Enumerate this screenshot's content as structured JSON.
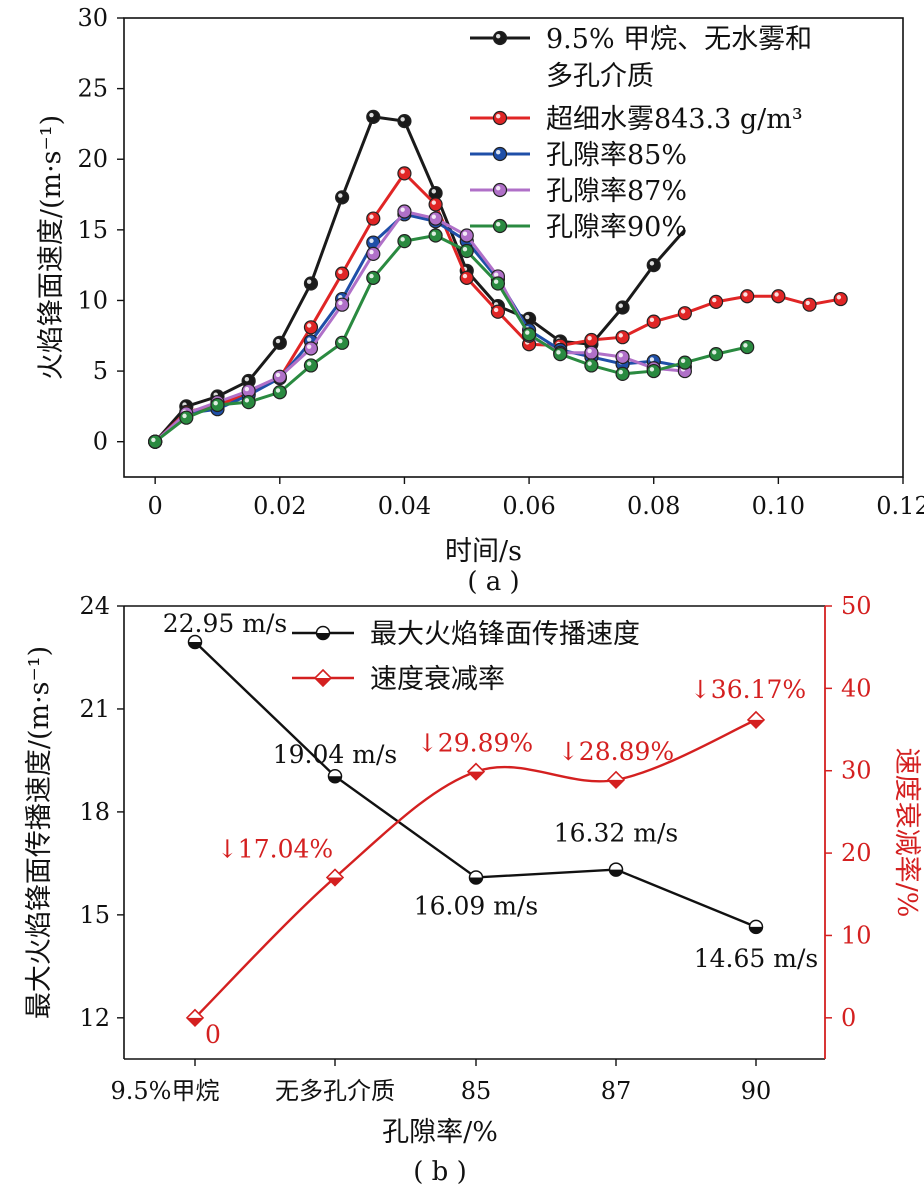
{
  "chart_data": [
    {
      "type": "line",
      "panel_label": "( a )",
      "xlabel": "时间/s",
      "ylabel": "火焰锋面速度/(m·s⁻¹)",
      "xlim": [
        -0.005,
        0.12
      ],
      "ylim": [
        -2.5,
        30
      ],
      "xticks": [
        "0",
        "0.02",
        "0.04",
        "0.06",
        "0.08",
        "0.10",
        "0.12"
      ],
      "yticks": [
        "0",
        "5",
        "10",
        "15",
        "20",
        "25",
        "30"
      ],
      "grid": false,
      "legend_position": "top-right",
      "series": [
        {
          "name": "9.5% 甲烷、无水雾和多孔介质",
          "legend_lines": [
            "9.5% 甲烷、无水雾和",
            "多孔介质"
          ],
          "color": "#1a1a1a",
          "x": [
            0,
            0.005,
            0.01,
            0.015,
            0.02,
            0.025,
            0.03,
            0.035,
            0.04,
            0.045,
            0.05,
            0.055,
            0.06,
            0.065,
            0.07,
            0.075,
            0.08,
            0.085
          ],
          "y": [
            0,
            2.5,
            3.2,
            4.3,
            7.0,
            11.2,
            17.3,
            23.0,
            22.7,
            17.6,
            12.1,
            9.6,
            8.7,
            7.1,
            6.9,
            9.5,
            12.5,
            15.0
          ]
        },
        {
          "name": "超细水雾843.3 g/m³",
          "legend_lines": [
            "超细水雾843.3 g/m³"
          ],
          "color": "#e02525",
          "x": [
            0,
            0.005,
            0.01,
            0.015,
            0.02,
            0.025,
            0.03,
            0.035,
            0.04,
            0.045,
            0.05,
            0.055,
            0.06,
            0.065,
            0.07,
            0.075,
            0.08,
            0.085,
            0.09,
            0.095,
            0.1,
            0.105,
            0.11
          ],
          "y": [
            0,
            2.1,
            2.6,
            3.4,
            4.5,
            8.1,
            11.9,
            15.8,
            19.0,
            16.8,
            11.6,
            9.2,
            6.9,
            6.8,
            7.2,
            7.4,
            8.5,
            9.1,
            9.9,
            10.3,
            10.3,
            9.7,
            10.1
          ]
        },
        {
          "name": "孔隙率85%",
          "legend_lines": [
            "孔隙率85%"
          ],
          "color": "#1f4fa8",
          "x": [
            0,
            0.005,
            0.01,
            0.015,
            0.02,
            0.025,
            0.03,
            0.035,
            0.04,
            0.045,
            0.05,
            0.055,
            0.06,
            0.065,
            0.07,
            0.075,
            0.08,
            0.085
          ],
          "y": [
            0,
            2.0,
            2.3,
            3.3,
            4.5,
            7.1,
            10.1,
            14.1,
            16.1,
            15.6,
            14.2,
            11.5,
            7.9,
            6.5,
            6.0,
            5.5,
            5.7,
            5.3
          ]
        },
        {
          "name": "孔隙率87%",
          "legend_lines": [
            "孔隙率87%"
          ],
          "color": "#b070c8",
          "x": [
            0,
            0.005,
            0.01,
            0.015,
            0.02,
            0.025,
            0.03,
            0.035,
            0.04,
            0.045,
            0.05,
            0.055,
            0.06,
            0.065,
            0.07,
            0.075,
            0.08,
            0.085
          ],
          "y": [
            0,
            2.0,
            2.8,
            3.6,
            4.6,
            6.6,
            9.7,
            13.3,
            16.3,
            15.8,
            14.6,
            11.7,
            7.5,
            6.3,
            6.3,
            6.0,
            5.2,
            5.0
          ]
        },
        {
          "name": "孔隙率90%",
          "legend_lines": [
            "孔隙率90%"
          ],
          "color": "#2a8a40",
          "x": [
            0,
            0.005,
            0.01,
            0.015,
            0.02,
            0.025,
            0.03,
            0.035,
            0.04,
            0.045,
            0.05,
            0.055,
            0.06,
            0.065,
            0.07,
            0.075,
            0.08,
            0.085,
            0.09,
            0.095
          ],
          "y": [
            0,
            1.7,
            2.6,
            2.8,
            3.5,
            5.4,
            7.0,
            11.6,
            14.2,
            14.6,
            13.5,
            11.2,
            7.6,
            6.2,
            5.4,
            4.8,
            5.0,
            5.6,
            6.2,
            6.7
          ]
        }
      ]
    },
    {
      "type": "line",
      "panel_label": "( b )",
      "xlabel": "孔隙率/%",
      "ylabel_left": "最大火焰锋面传播速度/(m·s⁻¹)",
      "ylabel_right": "速度衰减率/%",
      "categories": [
        "9.5%甲烷",
        "无多孔介质",
        "85",
        "87",
        "90"
      ],
      "ylim_left": [
        10.8,
        24
      ],
      "ylim_right": [
        -5,
        50
      ],
      "yticks_left": [
        "12",
        "15",
        "18",
        "21",
        "24"
      ],
      "yticks_right": [
        "0",
        "10",
        "20",
        "30",
        "40",
        "50"
      ],
      "legend_position": "top-center",
      "series": [
        {
          "name": "最大火焰锋面传播速度",
          "axis": "left",
          "color": "#111111",
          "values": [
            22.95,
            19.04,
            16.09,
            16.32,
            14.65
          ],
          "labels": [
            "22.95 m/s",
            "19.04 m/s",
            "16.09 m/s",
            "16.32 m/s",
            "14.65 m/s"
          ]
        },
        {
          "name": "速度衰减率",
          "axis": "right",
          "color": "#d42020",
          "values": [
            0,
            17.04,
            29.89,
            28.89,
            36.17
          ],
          "labels": [
            "0",
            "↓17.04%",
            "↓29.89%",
            "↓28.89%",
            "↓36.17%"
          ]
        }
      ]
    }
  ]
}
